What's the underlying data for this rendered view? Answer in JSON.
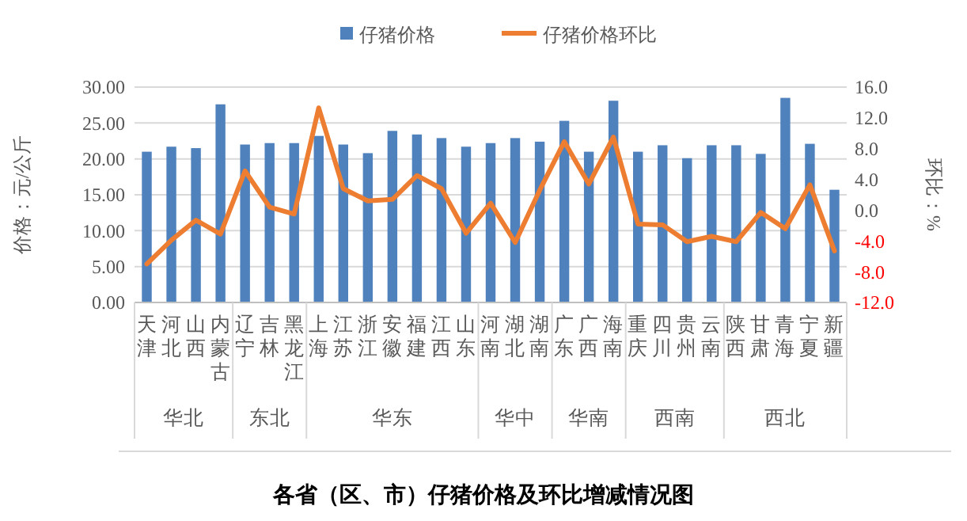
{
  "chart_data": {
    "type": "bar",
    "title": "各省（区、市）仔猪价格及环比增减情况图",
    "ylabel": "价格：元/公斤",
    "y2label": "环比：%",
    "categories": [
      "天津",
      "河北",
      "山西",
      "内蒙古",
      "辽宁",
      "吉林",
      "黑龙江",
      "上海",
      "江苏",
      "浙江",
      "安徽",
      "福建",
      "江西",
      "山东",
      "河南",
      "湖北",
      "湖南",
      "广东",
      "广西",
      "海南",
      "重庆",
      "四川",
      "贵州",
      "云南",
      "陕西",
      "甘肃",
      "青海",
      "宁夏",
      "新疆"
    ],
    "series": [
      {
        "name": "仔猪价格",
        "color": "#4f81bd",
        "values": [
          21.0,
          21.7,
          21.5,
          27.6,
          22.0,
          22.2,
          22.2,
          23.2,
          22.0,
          20.8,
          23.9,
          23.4,
          22.9,
          21.7,
          22.2,
          22.9,
          22.4,
          25.3,
          21.0,
          28.1,
          21.0,
          21.9,
          20.1,
          21.9,
          21.9,
          20.7,
          28.5,
          22.1,
          15.7
        ]
      },
      {
        "name": "仔猪价格环比",
        "type": "line",
        "axis": "y2",
        "color": "#ed7d31",
        "values": [
          -7.0,
          -3.9,
          -1.3,
          -3.1,
          5.1,
          0.4,
          -0.5,
          13.3,
          2.8,
          1.2,
          1.4,
          4.5,
          2.8,
          -3.0,
          0.9,
          -4.2,
          2.6,
          8.9,
          3.4,
          9.5,
          -1.8,
          -1.9,
          -4.1,
          -3.4,
          -4.1,
          -0.3,
          -2.4,
          3.3,
          -5.3
        ]
      }
    ],
    "ylim": [
      0,
      30
    ],
    "yticks": [
      {
        "value": 0,
        "label": "0.00"
      },
      {
        "value": 5,
        "label": "5.00"
      },
      {
        "value": 10,
        "label": "10.00"
      },
      {
        "value": 15,
        "label": "15.00"
      },
      {
        "value": 20,
        "label": "20.00"
      },
      {
        "value": 25,
        "label": "25.00"
      },
      {
        "value": 30,
        "label": "30.00"
      }
    ],
    "y2lim": [
      -12,
      16
    ],
    "y2ticks": [
      {
        "value": -12,
        "label": "-12.0"
      },
      {
        "value": -8,
        "label": "-8.0"
      },
      {
        "value": -4,
        "label": "-4.0"
      },
      {
        "value": 0,
        "label": "0.0"
      },
      {
        "value": 4,
        "label": "4.0"
      },
      {
        "value": 8,
        "label": "8.0"
      },
      {
        "value": 12,
        "label": "12.0"
      },
      {
        "value": 16,
        "label": "16.0"
      }
    ],
    "grid": "y",
    "legend": "top",
    "marker": "none",
    "line_style": "solid",
    "annotations": [
      "华北",
      "东北",
      "华东",
      "华中",
      "华南",
      "西南",
      "西北"
    ]
  }
}
